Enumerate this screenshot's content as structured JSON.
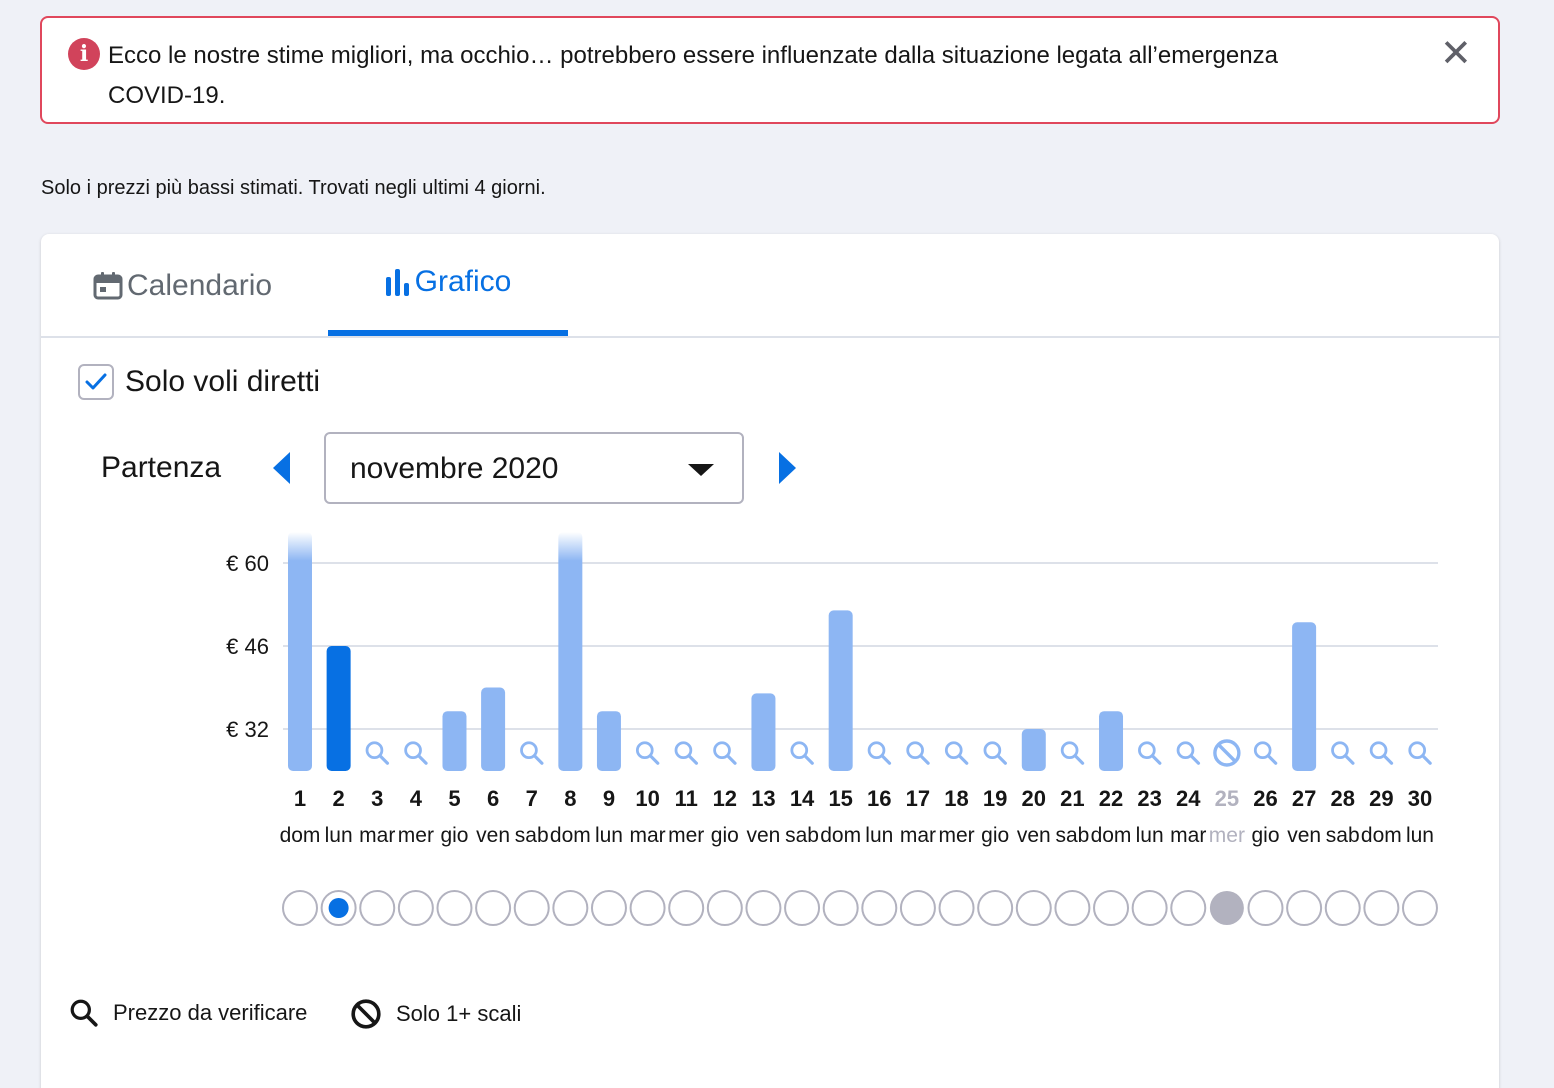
{
  "alert": {
    "text": "Ecco le nostre stime migliori, ma occhio… potrebbero essere influenzate dalla situazione legata all’emergenza COVID-19.",
    "icon": "info-icon",
    "close_icon": "close-icon",
    "color": "#e0475c"
  },
  "subinfo": "Solo i prezzi più bassi stimati. Trovati negli ultimi 4 giorni.",
  "tabs": [
    {
      "label": "Calendario",
      "icon": "calendar-icon",
      "active": false
    },
    {
      "label": "Grafico",
      "icon": "bar-chart-icon",
      "active": true
    }
  ],
  "filter": {
    "label": "Solo voli diretti",
    "checked": true
  },
  "departure": {
    "label": "Partenza",
    "month": "novembre 2020"
  },
  "colors": {
    "accent": "#0770e3",
    "bar": "#8db6f3",
    "bar_selected": "#0770e3",
    "disabled": "#b2b2bf"
  },
  "chart_data": {
    "type": "bar",
    "y_ticks": [
      "€ 60",
      "€ 46",
      "€ 32"
    ],
    "y_tick_values": [
      60,
      46,
      32
    ],
    "days": [
      {
        "day": "1",
        "weekday": "dom",
        "status": "price",
        "value": 64,
        "overflow": true
      },
      {
        "day": "2",
        "weekday": "lun",
        "status": "price",
        "value": 46,
        "selected": true
      },
      {
        "day": "3",
        "weekday": "mar",
        "status": "verify"
      },
      {
        "day": "4",
        "weekday": "mer",
        "status": "verify"
      },
      {
        "day": "5",
        "weekday": "gio",
        "status": "price",
        "value": 35
      },
      {
        "day": "6",
        "weekday": "ven",
        "status": "price",
        "value": 39
      },
      {
        "day": "7",
        "weekday": "sab",
        "status": "verify"
      },
      {
        "day": "8",
        "weekday": "dom",
        "status": "price",
        "value": 64,
        "overflow": true
      },
      {
        "day": "9",
        "weekday": "lun",
        "status": "price",
        "value": 35
      },
      {
        "day": "10",
        "weekday": "mar",
        "status": "verify"
      },
      {
        "day": "11",
        "weekday": "mer",
        "status": "verify"
      },
      {
        "day": "12",
        "weekday": "gio",
        "status": "verify"
      },
      {
        "day": "13",
        "weekday": "ven",
        "status": "price",
        "value": 38
      },
      {
        "day": "14",
        "weekday": "sab",
        "status": "verify"
      },
      {
        "day": "15",
        "weekday": "dom",
        "status": "price",
        "value": 52
      },
      {
        "day": "16",
        "weekday": "lun",
        "status": "verify"
      },
      {
        "day": "17",
        "weekday": "mar",
        "status": "verify"
      },
      {
        "day": "18",
        "weekday": "mer",
        "status": "verify"
      },
      {
        "day": "19",
        "weekday": "gio",
        "status": "verify"
      },
      {
        "day": "20",
        "weekday": "ven",
        "status": "price",
        "value": 32
      },
      {
        "day": "21",
        "weekday": "sab",
        "status": "verify"
      },
      {
        "day": "22",
        "weekday": "dom",
        "status": "price",
        "value": 35
      },
      {
        "day": "23",
        "weekday": "lun",
        "status": "verify"
      },
      {
        "day": "24",
        "weekday": "mar",
        "status": "verify"
      },
      {
        "day": "25",
        "weekday": "mer",
        "status": "stops",
        "disabled": true
      },
      {
        "day": "26",
        "weekday": "gio",
        "status": "verify"
      },
      {
        "day": "27",
        "weekday": "ven",
        "status": "price",
        "value": 50
      },
      {
        "day": "28",
        "weekday": "sab",
        "status": "verify"
      },
      {
        "day": "29",
        "weekday": "dom",
        "status": "verify"
      },
      {
        "day": "30",
        "weekday": "lun",
        "status": "verify"
      }
    ]
  },
  "legend": [
    {
      "label": "Prezzo da verificare",
      "icon": "magnifier-icon"
    },
    {
      "label": "Solo 1+ scali",
      "icon": "no-entry-icon"
    }
  ]
}
